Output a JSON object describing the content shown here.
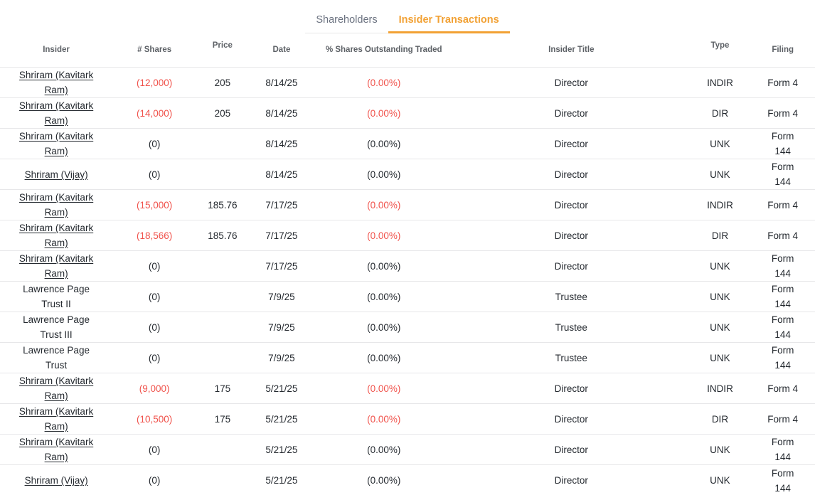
{
  "tabs": [
    {
      "label": "Shareholders",
      "active": false
    },
    {
      "label": "Insider Transactions",
      "active": true
    }
  ],
  "table": {
    "columns": [
      "Insider",
      "# Shares",
      "Price",
      "Date",
      "% Shares Outstanding Traded",
      "Insider Title",
      "Type",
      "Filing"
    ],
    "rows": [
      {
        "insider": "Shriram (Kavitark Ram)",
        "insider_link": true,
        "shares": "(12,000)",
        "shares_negative": true,
        "price": "205",
        "date": "8/14/25",
        "pct": "(0.00%)",
        "pct_negative": true,
        "title": "Director",
        "type": "INDIR",
        "filing": "Form 4"
      },
      {
        "insider": "Shriram (Kavitark Ram)",
        "insider_link": true,
        "shares": "(14,000)",
        "shares_negative": true,
        "price": "205",
        "date": "8/14/25",
        "pct": "(0.00%)",
        "pct_negative": true,
        "title": "Director",
        "type": "DIR",
        "filing": "Form 4"
      },
      {
        "insider": "Shriram (Kavitark Ram)",
        "insider_link": true,
        "shares": "(0)",
        "shares_negative": false,
        "price": "",
        "date": "8/14/25",
        "pct": "(0.00%)",
        "pct_negative": false,
        "title": "Director",
        "type": "UNK",
        "filing": "Form 144"
      },
      {
        "insider": "Shriram (Vijay)",
        "insider_link": true,
        "shares": "(0)",
        "shares_negative": false,
        "price": "",
        "date": "8/14/25",
        "pct": "(0.00%)",
        "pct_negative": false,
        "title": "Director",
        "type": "UNK",
        "filing": "Form 144"
      },
      {
        "insider": "Shriram (Kavitark Ram)",
        "insider_link": true,
        "shares": "(15,000)",
        "shares_negative": true,
        "price": "185.76",
        "date": "7/17/25",
        "pct": "(0.00%)",
        "pct_negative": true,
        "title": "Director",
        "type": "INDIR",
        "filing": "Form 4"
      },
      {
        "insider": "Shriram (Kavitark Ram)",
        "insider_link": true,
        "shares": "(18,566)",
        "shares_negative": true,
        "price": "185.76",
        "date": "7/17/25",
        "pct": "(0.00%)",
        "pct_negative": true,
        "title": "Director",
        "type": "DIR",
        "filing": "Form 4"
      },
      {
        "insider": "Shriram (Kavitark Ram)",
        "insider_link": true,
        "shares": "(0)",
        "shares_negative": false,
        "price": "",
        "date": "7/17/25",
        "pct": "(0.00%)",
        "pct_negative": false,
        "title": "Director",
        "type": "UNK",
        "filing": "Form 144"
      },
      {
        "insider": "Lawrence Page Trust II",
        "insider_link": false,
        "shares": "(0)",
        "shares_negative": false,
        "price": "",
        "date": "7/9/25",
        "pct": "(0.00%)",
        "pct_negative": false,
        "title": "Trustee",
        "type": "UNK",
        "filing": "Form 144"
      },
      {
        "insider": "Lawrence Page Trust III",
        "insider_link": false,
        "shares": "(0)",
        "shares_negative": false,
        "price": "",
        "date": "7/9/25",
        "pct": "(0.00%)",
        "pct_negative": false,
        "title": "Trustee",
        "type": "UNK",
        "filing": "Form 144"
      },
      {
        "insider": "Lawrence Page Trust",
        "insider_link": false,
        "shares": "(0)",
        "shares_negative": false,
        "price": "",
        "date": "7/9/25",
        "pct": "(0.00%)",
        "pct_negative": false,
        "title": "Trustee",
        "type": "UNK",
        "filing": "Form 144"
      },
      {
        "insider": "Shriram (Kavitark Ram)",
        "insider_link": true,
        "shares": "(9,000)",
        "shares_negative": true,
        "price": "175",
        "date": "5/21/25",
        "pct": "(0.00%)",
        "pct_negative": true,
        "title": "Director",
        "type": "INDIR",
        "filing": "Form 4"
      },
      {
        "insider": "Shriram (Kavitark Ram)",
        "insider_link": true,
        "shares": "(10,500)",
        "shares_negative": true,
        "price": "175",
        "date": "5/21/25",
        "pct": "(0.00%)",
        "pct_negative": true,
        "title": "Director",
        "type": "DIR",
        "filing": "Form 4"
      },
      {
        "insider": "Shriram (Kavitark Ram)",
        "insider_link": true,
        "shares": "(0)",
        "shares_negative": false,
        "price": "",
        "date": "5/21/25",
        "pct": "(0.00%)",
        "pct_negative": false,
        "title": "Director",
        "type": "UNK",
        "filing": "Form 144"
      },
      {
        "insider": "Shriram (Vijay)",
        "insider_link": true,
        "shares": "(0)",
        "shares_negative": false,
        "price": "",
        "date": "5/21/25",
        "pct": "(0.00%)",
        "pct_negative": false,
        "title": "Director",
        "type": "UNK",
        "filing": "Form 144"
      }
    ]
  },
  "colors": {
    "accent": "#f2a134",
    "red": "#f0524b",
    "text-dark": "#24292f",
    "text-gray": "#5d6166",
    "tab-gray": "#6b7280",
    "border": "#e7e7e9"
  }
}
